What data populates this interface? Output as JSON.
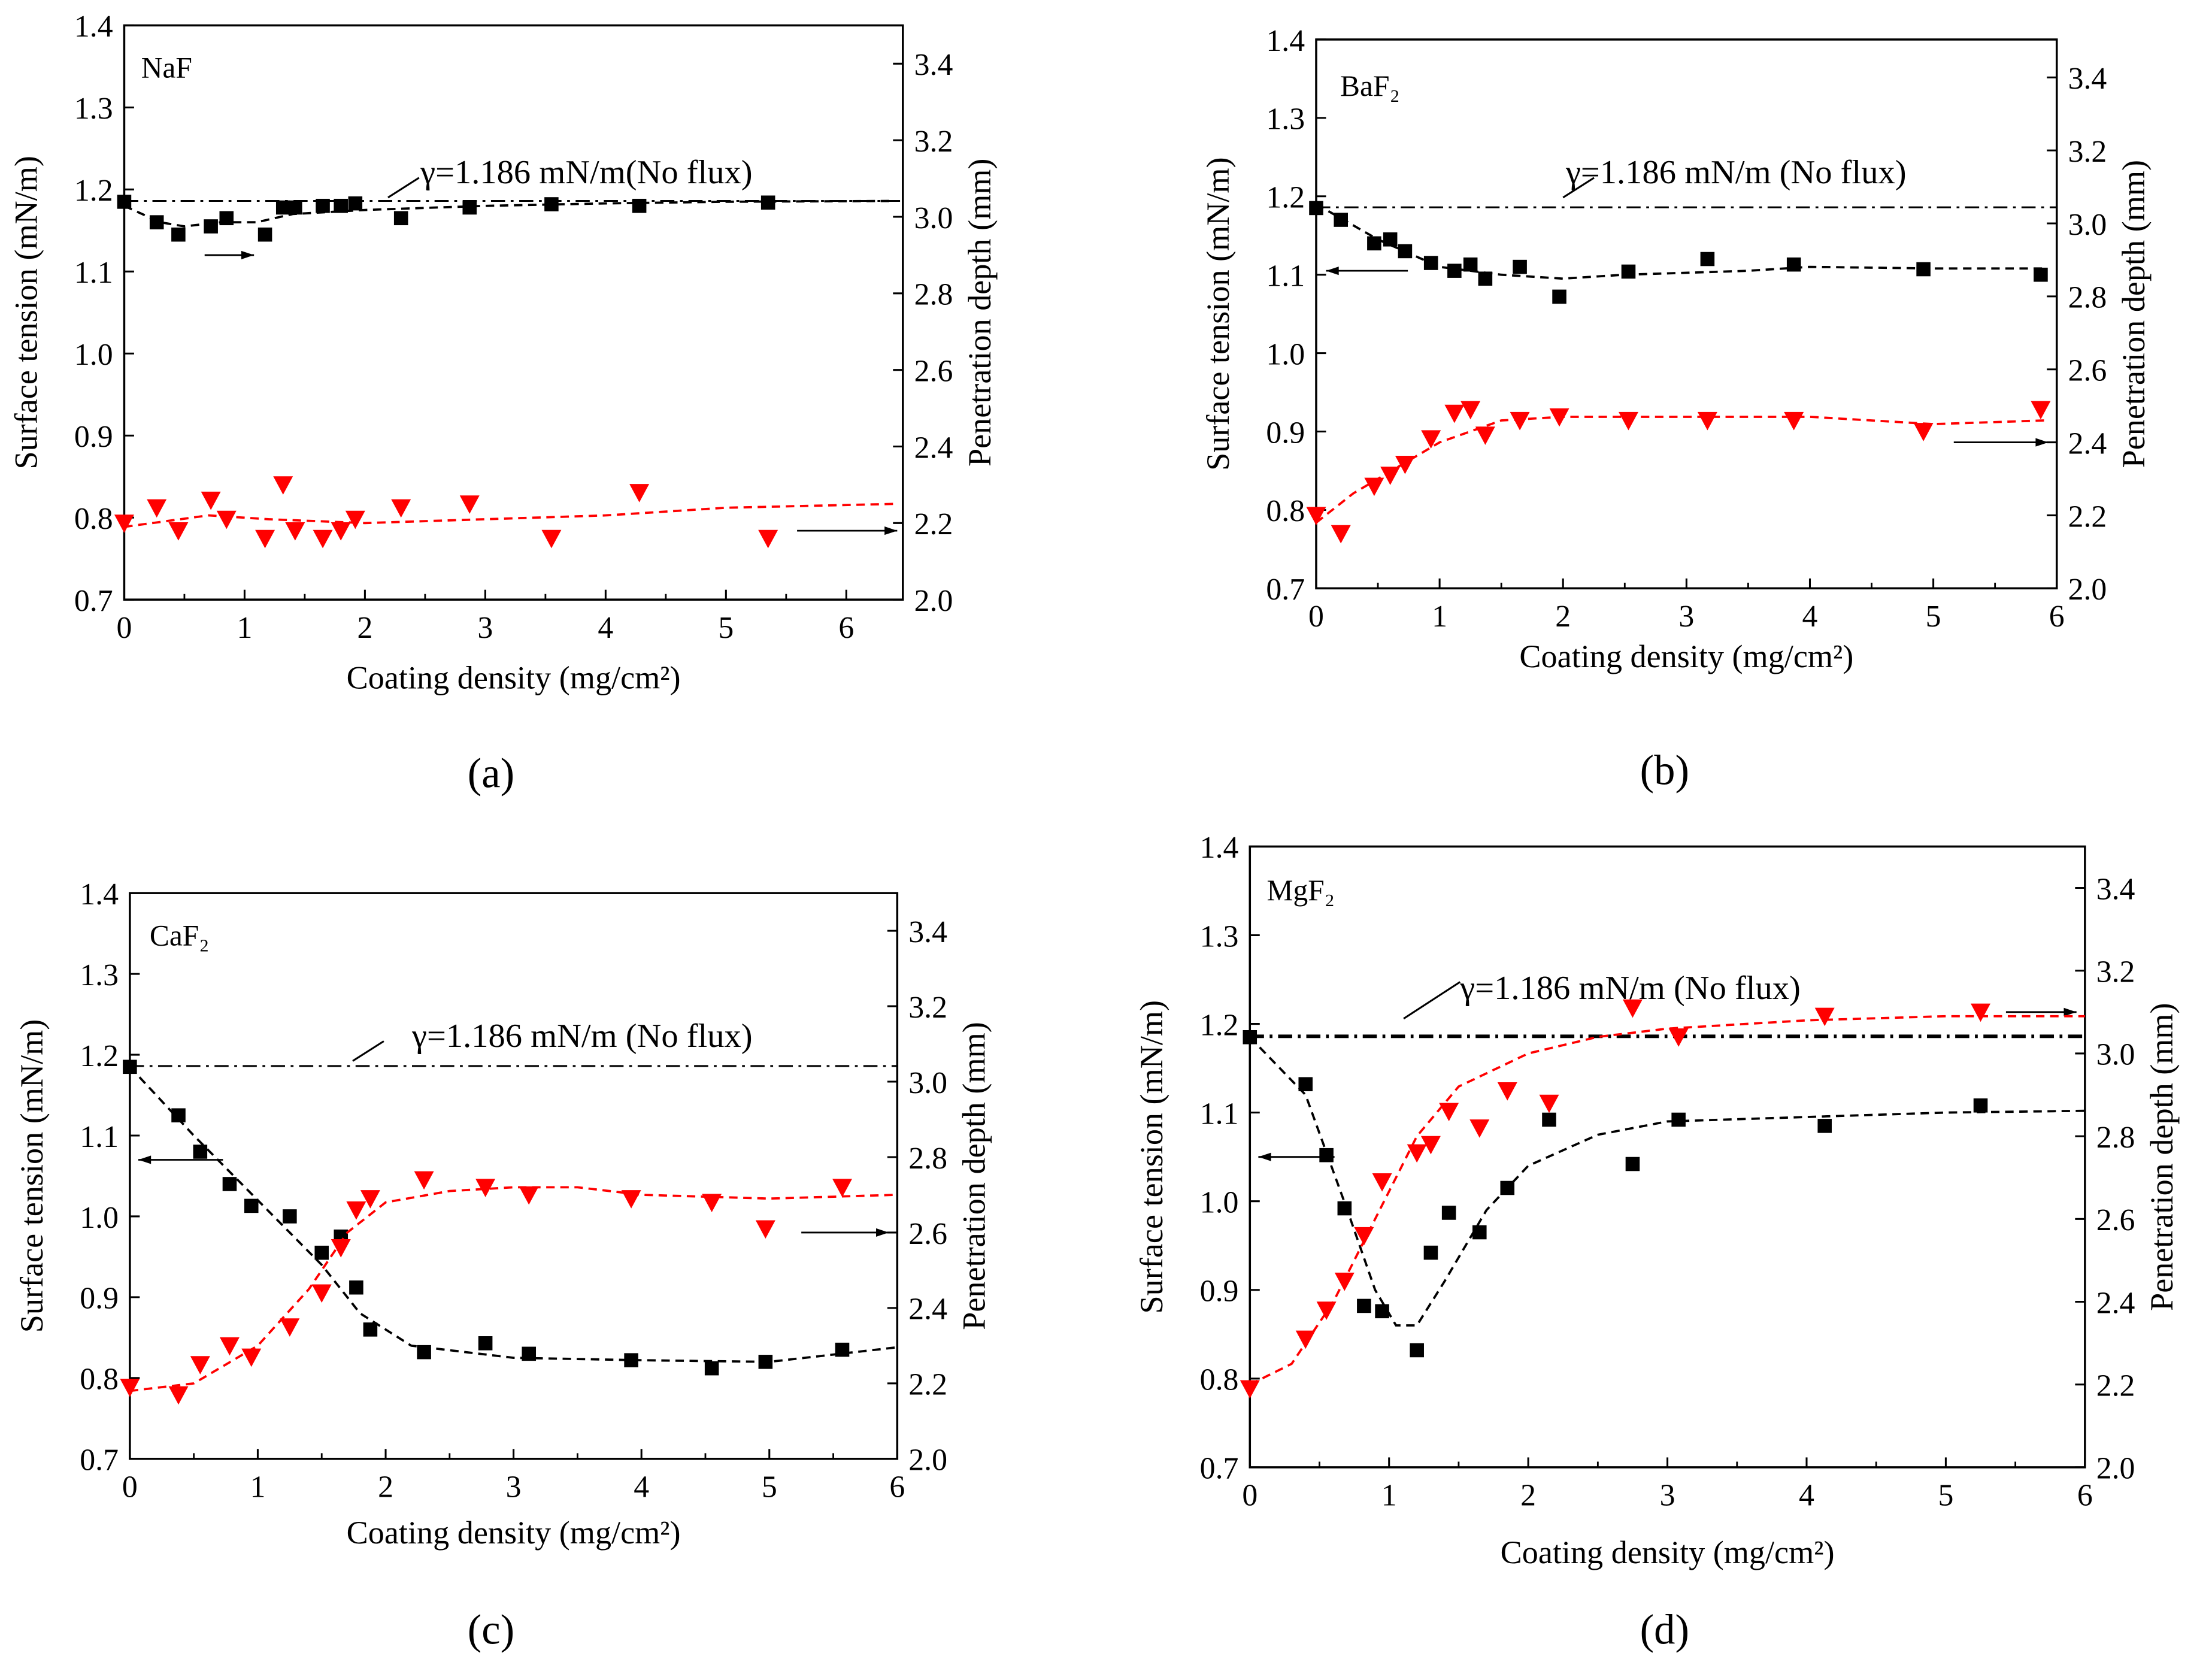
{
  "chart_data": [
    {
      "type": "scatter",
      "panel_label": "(a)",
      "title": "NaF",
      "xlabel": "Coating density  (mg/cm²)",
      "ylabel": "Surface tension (mN/m)",
      "y2label": "Penetration depth (mm)",
      "xlim": [
        0,
        6.47
      ],
      "ylim": [
        0.7,
        1.4
      ],
      "y2lim": [
        2.0,
        3.5
      ],
      "xticks": [
        0,
        1,
        2,
        3,
        4,
        5,
        6
      ],
      "yticks": [
        0.7,
        0.8,
        0.9,
        1.0,
        1.1,
        1.2,
        1.3,
        1.4
      ],
      "y2ticks": [
        2.0,
        2.2,
        2.4,
        2.6,
        2.8,
        3.0,
        3.2,
        3.4
      ],
      "reference": {
        "value": 1.186,
        "label": "γ=1.186 mN/m(No flux)"
      },
      "series": [
        {
          "name": "Surface tension",
          "axis": "left",
          "marker": "square",
          "color": "#000000",
          "x": [
            0,
            0.27,
            0.45,
            0.72,
            0.85,
            1.17,
            1.32,
            1.42,
            1.65,
            1.8,
            1.92,
            2.3,
            2.87,
            3.55,
            4.28,
            5.35
          ],
          "y": [
            1.185,
            1.16,
            1.145,
            1.155,
            1.165,
            1.145,
            1.178,
            1.178,
            1.18,
            1.18,
            1.183,
            1.165,
            1.178,
            1.182,
            1.18,
            1.184
          ],
          "fit": [
            [
              0,
              1.18
            ],
            [
              0.3,
              1.16
            ],
            [
              0.5,
              1.155
            ],
            [
              0.8,
              1.16
            ],
            [
              1.1,
              1.16
            ],
            [
              1.4,
              1.17
            ],
            [
              2,
              1.175
            ],
            [
              3,
              1.18
            ],
            [
              4,
              1.183
            ],
            [
              5,
              1.185
            ],
            [
              6.4,
              1.186
            ]
          ]
        },
        {
          "name": "Penetration depth",
          "axis": "right",
          "marker": "triangle-down",
          "color": "#ff0000",
          "x": [
            0,
            0.27,
            0.45,
            0.72,
            0.85,
            1.17,
            1.32,
            1.42,
            1.65,
            1.8,
            1.92,
            2.3,
            2.87,
            3.55,
            4.28,
            5.35
          ],
          "y": [
            2.2,
            2.24,
            2.18,
            2.26,
            2.21,
            2.16,
            2.3,
            2.18,
            2.16,
            2.18,
            2.21,
            2.24,
            2.25,
            2.16,
            2.28,
            2.16
          ],
          "fit": [
            [
              0,
              2.19
            ],
            [
              0.7,
              2.22
            ],
            [
              1.2,
              2.21
            ],
            [
              2,
              2.2
            ],
            [
              3,
              2.21
            ],
            [
              4,
              2.22
            ],
            [
              5,
              2.24
            ],
            [
              6.4,
              2.25
            ]
          ]
        }
      ]
    },
    {
      "type": "scatter",
      "panel_label": "(b)",
      "title": "BaF₂",
      "xlabel": "Coating density (mg/cm²)",
      "ylabel": "Surface tension (mN/m)",
      "y2label": "Penetration depth (mm)",
      "xlim": [
        0,
        6
      ],
      "ylim": [
        0.7,
        1.4
      ],
      "y2lim": [
        2.0,
        3.5
      ],
      "xticks": [
        0,
        1,
        2,
        3,
        4,
        5,
        6
      ],
      "yticks": [
        0.7,
        0.8,
        0.9,
        1.0,
        1.1,
        1.2,
        1.3,
        1.4
      ],
      "y2ticks": [
        2.0,
        2.2,
        2.4,
        2.6,
        2.8,
        3.0,
        3.2,
        3.4
      ],
      "reference": {
        "value": 1.186,
        "label": "γ=1.186 mN/m (No flux)"
      },
      "series": [
        {
          "name": "Surface tension",
          "axis": "left",
          "marker": "square",
          "color": "#000000",
          "x": [
            0,
            0.2,
            0.47,
            0.6,
            0.72,
            0.93,
            1.12,
            1.25,
            1.37,
            1.65,
            1.97,
            2.53,
            3.17,
            3.87,
            4.92,
            5.87
          ],
          "y": [
            1.185,
            1.17,
            1.14,
            1.145,
            1.13,
            1.115,
            1.105,
            1.113,
            1.095,
            1.11,
            1.072,
            1.104,
            1.12,
            1.113,
            1.107,
            1.1
          ],
          "fit": [
            [
              0,
              1.19
            ],
            [
              0.5,
              1.145
            ],
            [
              1,
              1.11
            ],
            [
              1.5,
              1.1
            ],
            [
              2,
              1.095
            ],
            [
              2.5,
              1.1
            ],
            [
              3.5,
              1.105
            ],
            [
              4,
              1.11
            ],
            [
              5,
              1.108
            ],
            [
              5.9,
              1.108
            ]
          ]
        },
        {
          "name": "Penetration depth",
          "axis": "right",
          "marker": "triangle-down",
          "color": "#ff0000",
          "x": [
            0,
            0.2,
            0.47,
            0.6,
            0.72,
            0.93,
            1.12,
            1.25,
            1.37,
            1.65,
            1.97,
            2.53,
            3.17,
            3.87,
            4.92,
            5.87
          ],
          "y": [
            2.2,
            2.15,
            2.28,
            2.31,
            2.34,
            2.41,
            2.48,
            2.49,
            2.42,
            2.46,
            2.47,
            2.46,
            2.46,
            2.46,
            2.43,
            2.49
          ],
          "fit": [
            [
              0,
              2.18
            ],
            [
              0.3,
              2.26
            ],
            [
              0.7,
              2.34
            ],
            [
              1,
              2.4
            ],
            [
              1.5,
              2.46
            ],
            [
              2,
              2.47
            ],
            [
              4,
              2.47
            ],
            [
              5,
              2.45
            ],
            [
              5.9,
              2.46
            ]
          ]
        }
      ]
    },
    {
      "type": "scatter",
      "panel_label": "(c)",
      "title": "CaF₂",
      "xlabel": "Coating density (mg/cm²)",
      "ylabel": "Surface tension (mN/m)",
      "y2label": "Penetration depth (mm)",
      "xlim": [
        0,
        6
      ],
      "ylim": [
        0.7,
        1.4
      ],
      "y2lim": [
        2.0,
        3.5
      ],
      "xticks": [
        0,
        1,
        2,
        3,
        4,
        5,
        6
      ],
      "yticks": [
        0.7,
        0.8,
        0.9,
        1.0,
        1.1,
        1.2,
        1.3,
        1.4
      ],
      "y2ticks": [
        2.0,
        2.2,
        2.4,
        2.6,
        2.8,
        3.0,
        3.2,
        3.4
      ],
      "reference": {
        "value": 1.186,
        "label": "γ=1.186 mN/m (No flux)"
      },
      "series": [
        {
          "name": "Surface tension",
          "axis": "left",
          "marker": "square",
          "color": "#000000",
          "x": [
            0,
            0.38,
            0.55,
            0.78,
            0.95,
            1.25,
            1.5,
            1.65,
            1.77,
            1.88,
            2.3,
            2.78,
            3.12,
            3.92,
            4.55,
            4.97,
            5.57
          ],
          "y": [
            1.185,
            1.125,
            1.08,
            1.04,
            1.013,
            1.0,
            0.955,
            0.975,
            0.912,
            0.86,
            0.832,
            0.843,
            0.83,
            0.822,
            0.812,
            0.82,
            0.835
          ],
          "fit": [
            [
              0,
              1.185
            ],
            [
              0.5,
              1.1
            ],
            [
              1,
              1.02
            ],
            [
              1.5,
              0.94
            ],
            [
              1.8,
              0.88
            ],
            [
              2.2,
              0.84
            ],
            [
              3,
              0.825
            ],
            [
              4,
              0.822
            ],
            [
              5,
              0.82
            ],
            [
              6,
              0.838
            ]
          ]
        },
        {
          "name": "Penetration depth",
          "axis": "right",
          "marker": "triangle-down",
          "color": "#ff0000",
          "x": [
            0,
            0.38,
            0.55,
            0.78,
            0.95,
            1.25,
            1.5,
            1.65,
            1.77,
            1.88,
            2.3,
            2.78,
            3.12,
            3.92,
            4.55,
            4.97,
            5.57
          ],
          "y": [
            2.19,
            2.17,
            2.25,
            2.3,
            2.27,
            2.35,
            2.44,
            2.56,
            2.66,
            2.69,
            2.74,
            2.72,
            2.7,
            2.69,
            2.68,
            2.61,
            2.72
          ],
          "fit": [
            [
              0,
              2.18
            ],
            [
              0.5,
              2.2
            ],
            [
              1,
              2.3
            ],
            [
              1.4,
              2.45
            ],
            [
              1.7,
              2.6
            ],
            [
              2,
              2.68
            ],
            [
              2.5,
              2.71
            ],
            [
              3,
              2.72
            ],
            [
              3.5,
              2.72
            ],
            [
              4,
              2.7
            ],
            [
              5,
              2.69
            ],
            [
              6,
              2.7
            ]
          ]
        }
      ]
    },
    {
      "type": "scatter",
      "panel_label": "(d)",
      "title": "MgF₂",
      "xlabel": "Coating density  (mg/cm²)",
      "ylabel": "Surface tension (mN/m)",
      "y2label": "Penetration depth (mm)",
      "xlim": [
        0,
        6
      ],
      "ylim": [
        0.7,
        1.4
      ],
      "y2lim": [
        2.0,
        3.5
      ],
      "xticks": [
        0,
        1,
        2,
        3,
        4,
        5,
        6
      ],
      "yticks": [
        0.7,
        0.8,
        0.9,
        1.0,
        1.1,
        1.2,
        1.3,
        1.4
      ],
      "y2ticks": [
        2.0,
        2.2,
        2.4,
        2.6,
        2.8,
        3.0,
        3.2,
        3.4
      ],
      "reference": {
        "value": 1.186,
        "label": "γ=1.186 mN/m (No flux)"
      },
      "series": [
        {
          "name": "Surface tension",
          "axis": "left",
          "marker": "square",
          "color": "#000000",
          "x": [
            0,
            0.4,
            0.55,
            0.68,
            0.82,
            0.95,
            1.2,
            1.3,
            1.43,
            1.65,
            1.85,
            2.15,
            2.75,
            3.08,
            4.13,
            5.25
          ],
          "y": [
            1.185,
            1.132,
            1.052,
            0.992,
            0.882,
            0.876,
            0.832,
            0.942,
            0.987,
            0.965,
            1.015,
            1.092,
            1.042,
            1.092,
            1.085,
            1.108
          ],
          "fit": [
            [
              0,
              1.185
            ],
            [
              0.4,
              1.12
            ],
            [
              0.7,
              0.99
            ],
            [
              0.9,
              0.9
            ],
            [
              1.05,
              0.86
            ],
            [
              1.2,
              0.86
            ],
            [
              1.4,
              0.91
            ],
            [
              1.7,
              0.99
            ],
            [
              2,
              1.04
            ],
            [
              2.5,
              1.075
            ],
            [
              3,
              1.09
            ],
            [
              4,
              1.095
            ],
            [
              5,
              1.1
            ],
            [
              6,
              1.102
            ]
          ]
        },
        {
          "name": "Penetration depth",
          "axis": "right",
          "marker": "triangle-down",
          "color": "#ff0000",
          "x": [
            0,
            0.4,
            0.55,
            0.68,
            0.82,
            0.95,
            1.2,
            1.3,
            1.43,
            1.65,
            1.85,
            2.15,
            2.75,
            3.08,
            4.13,
            5.25
          ],
          "y": [
            2.19,
            2.31,
            2.38,
            2.45,
            2.56,
            2.69,
            2.76,
            2.78,
            2.86,
            2.82,
            2.91,
            2.88,
            3.11,
            3.04,
            3.09,
            3.1
          ],
          "fit": [
            [
              0,
              2.2
            ],
            [
              0.3,
              2.25
            ],
            [
              0.6,
              2.4
            ],
            [
              0.9,
              2.6
            ],
            [
              1.2,
              2.8
            ],
            [
              1.5,
              2.92
            ],
            [
              2,
              3.0
            ],
            [
              2.5,
              3.04
            ],
            [
              3,
              3.06
            ],
            [
              4,
              3.08
            ],
            [
              5,
              3.09
            ],
            [
              6,
              3.09
            ]
          ]
        }
      ]
    }
  ]
}
